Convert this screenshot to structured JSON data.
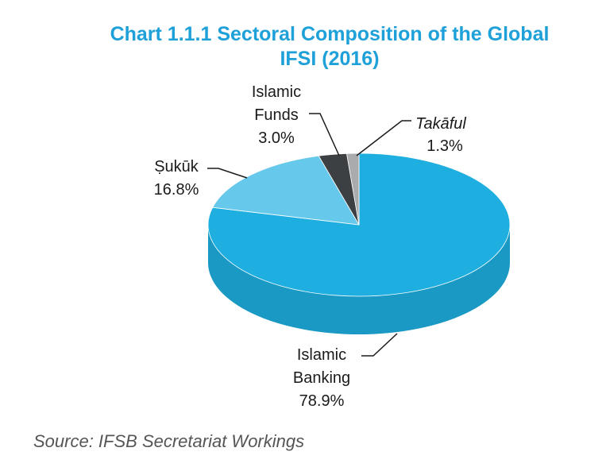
{
  "chart_data": {
    "type": "pie3d",
    "title": "Chart 1.1.1 Sectoral Composition of the Global IFSI (2016)",
    "categories": [
      "Islamic Banking",
      "Ṣukūk",
      "Islamic Funds",
      "Takāful"
    ],
    "values": [
      78.9,
      16.8,
      3.0,
      1.3
    ],
    "value_labels": [
      "78.9%",
      "16.8%",
      "3.0%",
      "1.3%"
    ],
    "colors": [
      "#1eaee0",
      "#66c8ea",
      "#3c4043",
      "#a9abad"
    ],
    "source": "Source: IFSB Secretariat Workings"
  }
}
